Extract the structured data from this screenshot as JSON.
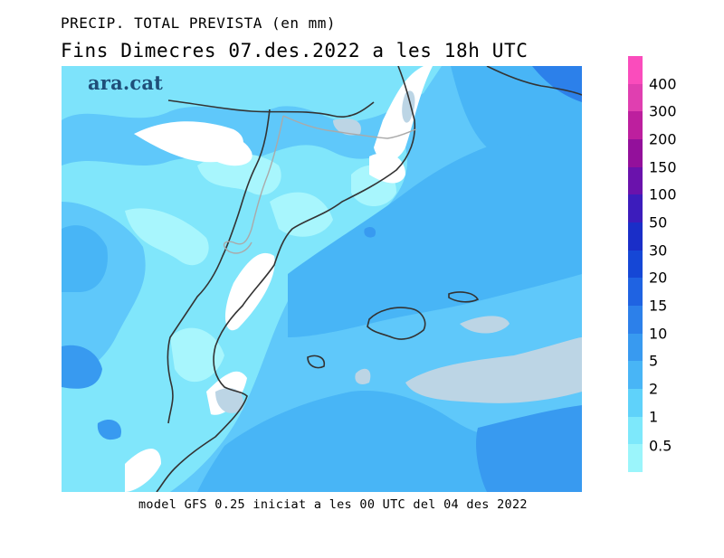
{
  "header": {
    "title": "PRECIP. TOTAL PREVISTA (en mm)",
    "subtitle": "Fins Dimecres  07.des.2022  a les  18h  UTC"
  },
  "footer": {
    "caption": "model GFS 0.25 iniciat a les 00 UTC del 04 des 2022"
  },
  "map": {
    "logo_text": "ara.cat",
    "land_outline_color": "#333333",
    "border_color": "#aaaaaa"
  },
  "legend": {
    "thresholds": [
      "0.5",
      "1",
      "2",
      "5",
      "10",
      "15",
      "20",
      "30",
      "50",
      "100",
      "150",
      "200",
      "300",
      "400"
    ],
    "colors": [
      "#9bf5fb",
      "#7de8fb",
      "#5fd2fa",
      "#48b5f6",
      "#389af0",
      "#2c80ea",
      "#1f63e2",
      "#1547d6",
      "#1a2ec8",
      "#3c1cbc",
      "#6a12ac",
      "#93109b",
      "#bd1f9e",
      "#e03fb0",
      "#fa4cbc"
    ]
  }
}
